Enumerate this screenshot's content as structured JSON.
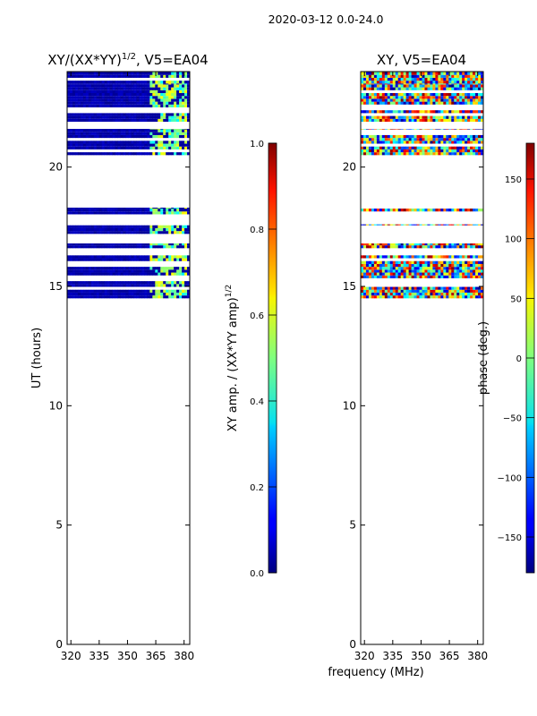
{
  "figure": {
    "suptitle": "2020-03-12 0.0-24.0",
    "xlabel": "frequency (MHz)"
  },
  "chart_data": [
    {
      "type": "heatmap",
      "title_main": "XY/(XX*YY)",
      "title_sup": "1/2",
      "title_tail": ", V5=EA04",
      "xlabel": "",
      "ylabel": "UT (hours)",
      "xlim": [
        318,
        383
      ],
      "ylim": [
        0,
        24
      ],
      "xticks": [
        320,
        335,
        350,
        365,
        380
      ],
      "yticks": [
        0,
        5,
        10,
        15,
        20
      ],
      "colorbar": {
        "label_main": "XY amp. / (XX*YY amp)",
        "label_sup": "1/2",
        "range": [
          0.0,
          1.0
        ],
        "ticks": [
          "0.0",
          "0.2",
          "0.4",
          "0.6",
          "0.8",
          "1.0"
        ],
        "tick_values": [
          0.0,
          0.2,
          0.4,
          0.6,
          0.8,
          1.0
        ],
        "colormap": "jet"
      },
      "data_time_bands_hours": [
        [
          14.5,
          16.3
        ],
        [
          16.6,
          16.8
        ],
        [
          17.2,
          17.6
        ],
        [
          17.9,
          18.3
        ],
        [
          20.5,
          21.6
        ],
        [
          21.9,
          23.5
        ],
        [
          23.5,
          24.0
        ]
      ],
      "data_note": "Values mostly near 0.0 (dark blue); bright features up to ~0.6 near 362-382 MHz"
    },
    {
      "type": "heatmap",
      "title_main": "XY, V5=EA04",
      "xlabel": "",
      "ylabel": "",
      "xlim": [
        318,
        383
      ],
      "ylim": [
        0,
        24
      ],
      "xticks": [
        320,
        335,
        350,
        365,
        380
      ],
      "yticks": [
        0,
        5,
        10,
        15,
        20
      ],
      "colorbar": {
        "label_main": "phase (deg.)",
        "range": [
          -180,
          180
        ],
        "ticks": [
          "−150",
          "−100",
          "−50",
          "0",
          "50",
          "100",
          "150"
        ],
        "tick_values": [
          -150,
          -100,
          -50,
          0,
          50,
          100,
          150
        ],
        "colormap": "jet"
      },
      "data_time_bands_hours": [
        [
          14.5,
          16.3
        ],
        [
          16.6,
          16.8
        ],
        [
          17.2,
          17.6
        ],
        [
          17.9,
          18.3
        ],
        [
          20.5,
          21.6
        ],
        [
          21.9,
          23.5
        ],
        [
          23.5,
          24.0
        ]
      ],
      "data_note": "Phase values spanning full -180 to 180 deg range"
    }
  ]
}
